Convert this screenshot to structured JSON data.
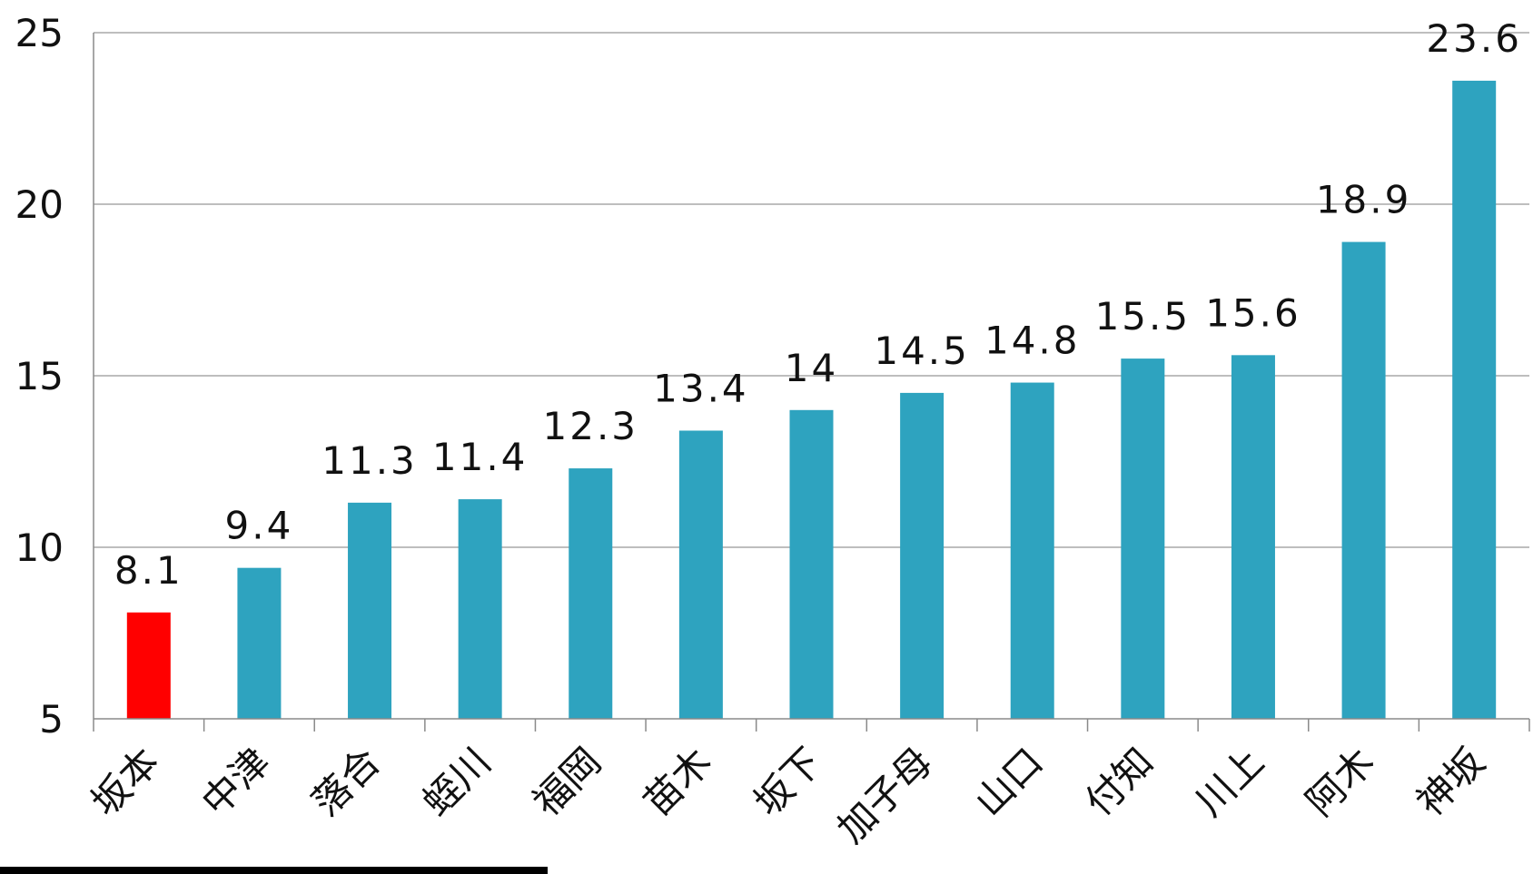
{
  "chart_data": {
    "type": "bar",
    "categories": [
      "坂本",
      "中津",
      "落合",
      "蛭川",
      "福岡",
      "苗木",
      "坂下",
      "加子母",
      "山口",
      "付知",
      "川上",
      "阿木",
      "神坂"
    ],
    "values": [
      8.1,
      9.4,
      11.3,
      11.4,
      12.3,
      13.4,
      14,
      14.5,
      14.8,
      15.5,
      15.6,
      18.9,
      23.6
    ],
    "data_labels": [
      "8.1",
      "9.4",
      "11.3",
      "11.4",
      "12.3",
      "13.4",
      "14",
      "14.5",
      "14.8",
      "15.5",
      "15.6",
      "18.9",
      "23.6"
    ],
    "ylim": [
      5,
      25
    ],
    "yticks": [
      5,
      10,
      15,
      20,
      25
    ],
    "grid": true,
    "legend": "none",
    "title": "",
    "xlabel": "",
    "ylabel": "",
    "colors": {
      "default_bar": "#2ea3bf",
      "highlight_bar": "#ff0000",
      "highlight_index": 0
    }
  }
}
